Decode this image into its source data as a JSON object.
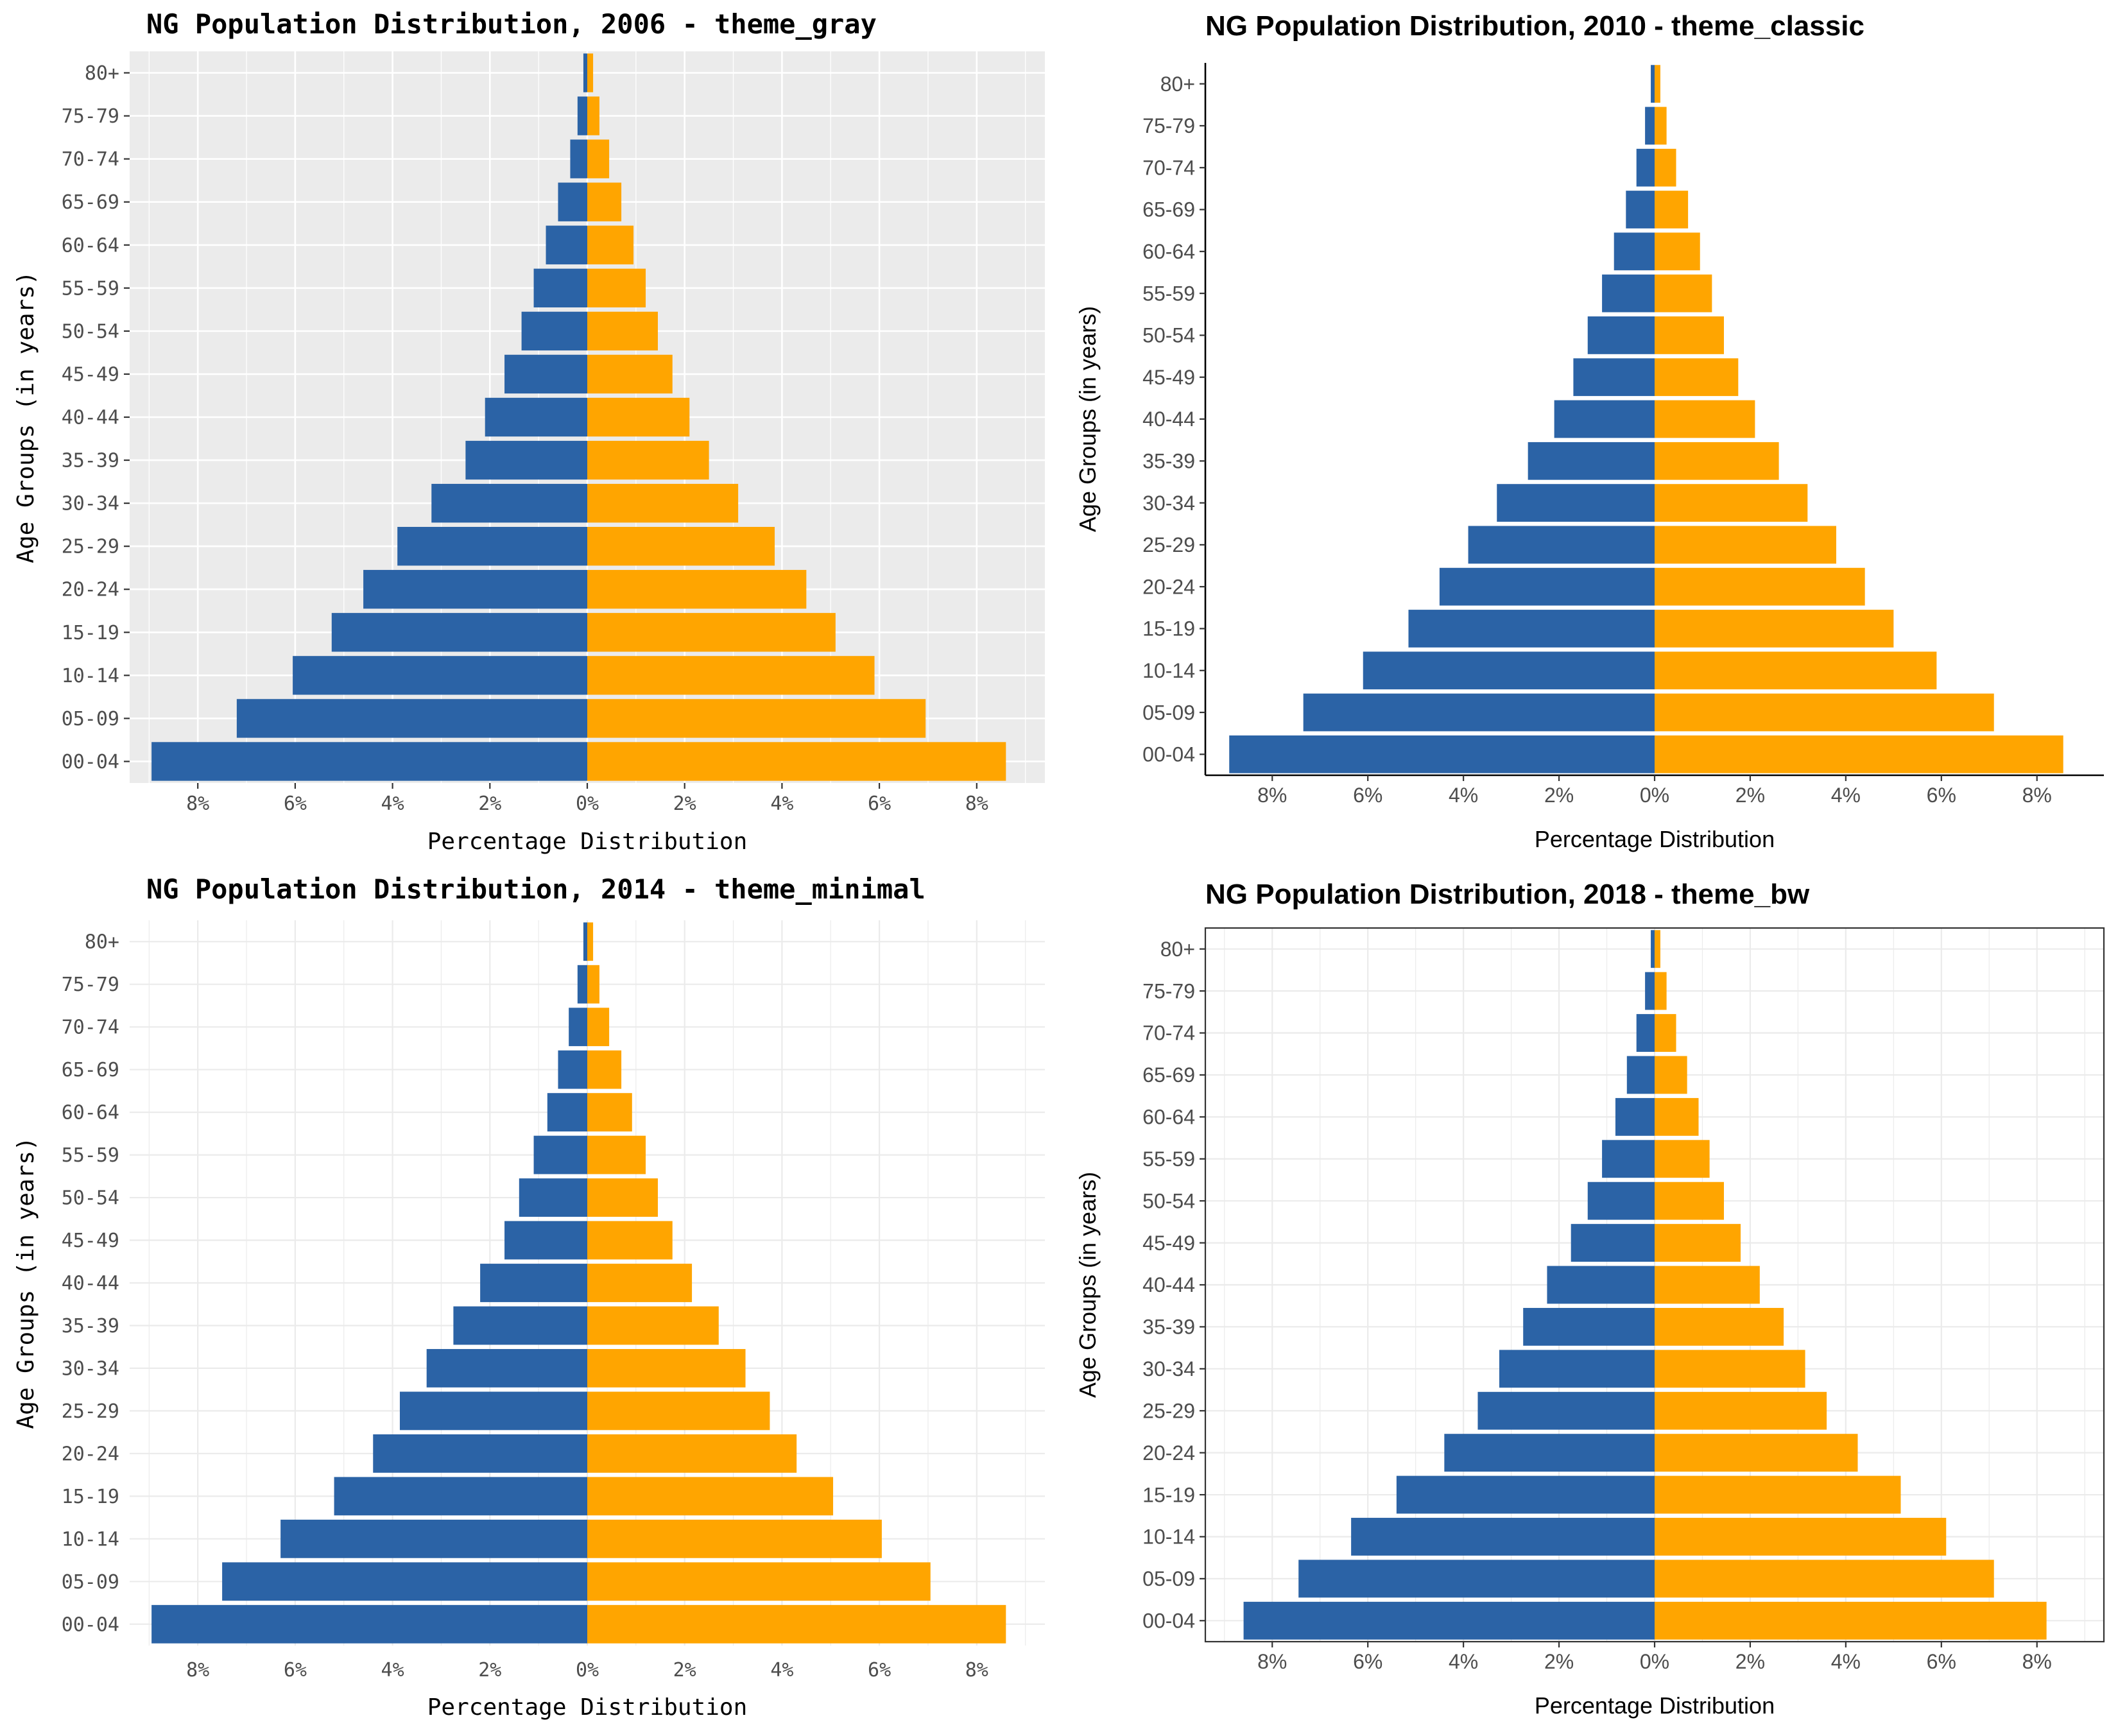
{
  "colors": {
    "male": "#2b63a6",
    "female": "#ffa500",
    "gray_panel": "#ebebeb",
    "text": "#4d4d4d",
    "title": "#000000"
  },
  "chart_data": [
    {
      "type": "bar",
      "orientation": "horizontal-pyramid",
      "theme": "theme_gray",
      "title": "NG Population Distribution, 2006 - theme_gray",
      "xlabel": "Percentage Distribution",
      "ylabel": "Age Groups (in years)",
      "categories": [
        "00-04",
        "05-09",
        "10-14",
        "15-19",
        "20-24",
        "25-29",
        "30-34",
        "35-39",
        "40-44",
        "45-49",
        "50-54",
        "55-59",
        "60-64",
        "65-69",
        "70-74",
        "75-79",
        "80+"
      ],
      "x_tick_labels": [
        "8%",
        "6%",
        "4%",
        "2%",
        "0%",
        "2%",
        "4%",
        "6%",
        "8%"
      ],
      "x_tick_values": [
        -8,
        -6,
        -4,
        -2,
        0,
        2,
        4,
        6,
        8
      ],
      "xlim": [
        -9.4,
        9.4
      ],
      "grid": true,
      "series": [
        {
          "values": [
            -8.95,
            -7.2,
            -6.05,
            -5.25,
            -4.6,
            -3.9,
            -3.2,
            -2.5,
            -2.1,
            -1.7,
            -1.35,
            -1.1,
            -0.85,
            -0.6,
            -0.35,
            -0.2,
            -0.08
          ]
        },
        {
          "values": [
            8.6,
            6.95,
            5.9,
            5.1,
            4.5,
            3.85,
            3.1,
            2.5,
            2.1,
            1.75,
            1.45,
            1.2,
            0.95,
            0.7,
            0.45,
            0.25,
            0.12
          ]
        }
      ]
    },
    {
      "type": "bar",
      "orientation": "horizontal-pyramid",
      "theme": "theme_classic",
      "title": "NG Population Distribution, 2010 - theme_classic",
      "xlabel": "Percentage Distribution",
      "ylabel": "Age Groups (in years)",
      "categories": [
        "00-04",
        "05-09",
        "10-14",
        "15-19",
        "20-24",
        "25-29",
        "30-34",
        "35-39",
        "40-44",
        "45-49",
        "50-54",
        "55-59",
        "60-64",
        "65-69",
        "70-74",
        "75-79",
        "80+"
      ],
      "x_tick_labels": [
        "8%",
        "6%",
        "4%",
        "2%",
        "0%",
        "2%",
        "4%",
        "6%",
        "8%"
      ],
      "x_tick_values": [
        -8,
        -6,
        -4,
        -2,
        0,
        2,
        4,
        6,
        8
      ],
      "xlim": [
        -9.4,
        9.4
      ],
      "grid": false,
      "series": [
        {
          "values": [
            -8.9,
            -7.35,
            -6.1,
            -5.15,
            -4.5,
            -3.9,
            -3.3,
            -2.65,
            -2.1,
            -1.7,
            -1.4,
            -1.1,
            -0.85,
            -0.6,
            -0.38,
            -0.2,
            -0.08
          ]
        },
        {
          "values": [
            8.55,
            7.1,
            5.9,
            5.0,
            4.4,
            3.8,
            3.2,
            2.6,
            2.1,
            1.75,
            1.45,
            1.2,
            0.95,
            0.7,
            0.45,
            0.25,
            0.12
          ]
        }
      ]
    },
    {
      "type": "bar",
      "orientation": "horizontal-pyramid",
      "theme": "theme_minimal",
      "title": "NG Population Distribution, 2014 - theme_minimal",
      "xlabel": "Percentage Distribution",
      "ylabel": "Age Groups (in years)",
      "categories": [
        "00-04",
        "05-09",
        "10-14",
        "15-19",
        "20-24",
        "25-29",
        "30-34",
        "35-39",
        "40-44",
        "45-49",
        "50-54",
        "55-59",
        "60-64",
        "65-69",
        "70-74",
        "75-79",
        "80+"
      ],
      "x_tick_labels": [
        "8%",
        "6%",
        "4%",
        "2%",
        "0%",
        "2%",
        "4%",
        "6%",
        "8%"
      ],
      "x_tick_values": [
        -8,
        -6,
        -4,
        -2,
        0,
        2,
        4,
        6,
        8
      ],
      "xlim": [
        -9.4,
        9.4
      ],
      "grid": true,
      "series": [
        {
          "values": [
            -8.95,
            -7.5,
            -6.3,
            -5.2,
            -4.4,
            -3.85,
            -3.3,
            -2.75,
            -2.2,
            -1.7,
            -1.4,
            -1.1,
            -0.82,
            -0.6,
            -0.38,
            -0.2,
            -0.08
          ]
        },
        {
          "values": [
            8.6,
            7.05,
            6.05,
            5.05,
            4.3,
            3.75,
            3.25,
            2.7,
            2.15,
            1.75,
            1.45,
            1.2,
            0.92,
            0.7,
            0.45,
            0.25,
            0.12
          ]
        }
      ]
    },
    {
      "type": "bar",
      "orientation": "horizontal-pyramid",
      "theme": "theme_bw",
      "title": "NG Population Distribution, 2018 - theme_bw",
      "xlabel": "Percentage Distribution",
      "ylabel": "Age Groups (in years)",
      "categories": [
        "00-04",
        "05-09",
        "10-14",
        "15-19",
        "20-24",
        "25-29",
        "30-34",
        "35-39",
        "40-44",
        "45-49",
        "50-54",
        "55-59",
        "60-64",
        "65-69",
        "70-74",
        "75-79",
        "80+"
      ],
      "x_tick_labels": [
        "8%",
        "6%",
        "4%",
        "2%",
        "0%",
        "2%",
        "4%",
        "6%",
        "8%"
      ],
      "x_tick_values": [
        -8,
        -6,
        -4,
        -2,
        0,
        2,
        4,
        6,
        8
      ],
      "xlim": [
        -9.4,
        9.4
      ],
      "grid": true,
      "series": [
        {
          "values": [
            -8.6,
            -7.45,
            -6.35,
            -5.4,
            -4.4,
            -3.7,
            -3.25,
            -2.75,
            -2.25,
            -1.75,
            -1.4,
            -1.1,
            -0.82,
            -0.58,
            -0.38,
            -0.2,
            -0.08
          ]
        },
        {
          "values": [
            8.2,
            7.1,
            6.1,
            5.15,
            4.25,
            3.6,
            3.15,
            2.7,
            2.2,
            1.8,
            1.45,
            1.15,
            0.92,
            0.68,
            0.45,
            0.25,
            0.12
          ]
        }
      ]
    }
  ]
}
